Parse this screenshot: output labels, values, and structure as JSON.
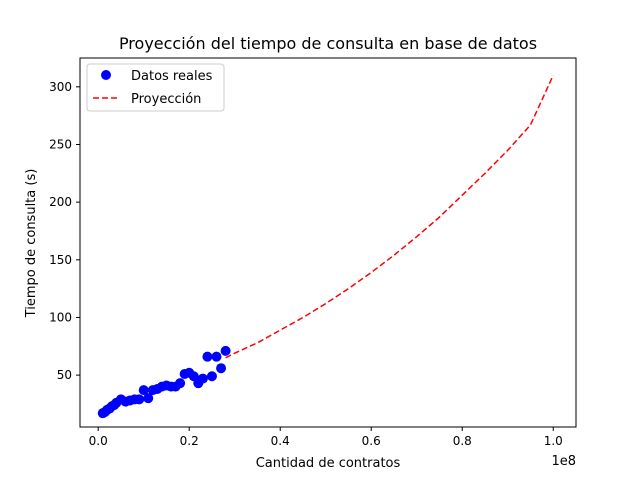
{
  "chart_data": {
    "type": "scatter",
    "title": "Proyección del tiempo de consulta en base de datos",
    "xlabel": "Cantidad de contratos",
    "ylabel": "Tiempo de consulta (s)",
    "x_offset_label": "1e8",
    "xlim": [
      -0.04,
      1.05
    ],
    "ylim": [
      5,
      325
    ],
    "x_ticks": [
      0.0,
      0.2,
      0.4,
      0.6,
      0.8,
      1.0
    ],
    "x_tick_labels": [
      "0.0",
      "0.2",
      "0.4",
      "0.6",
      "0.8",
      "1.0"
    ],
    "y_ticks": [
      50,
      100,
      150,
      200,
      250,
      300
    ],
    "y_tick_labels": [
      "50",
      "100",
      "150",
      "200",
      "250",
      "300"
    ],
    "grid": false,
    "legend_position": "top-left",
    "series": [
      {
        "name": "Datos reales",
        "type": "scatter",
        "color": "#0000ff",
        "points": [
          [
            0.01,
            17
          ],
          [
            0.015,
            18
          ],
          [
            0.02,
            20
          ],
          [
            0.025,
            21
          ],
          [
            0.03,
            23
          ],
          [
            0.035,
            24
          ],
          [
            0.04,
            26
          ],
          [
            0.05,
            29
          ],
          [
            0.06,
            27
          ],
          [
            0.07,
            28
          ],
          [
            0.08,
            29
          ],
          [
            0.09,
            29
          ],
          [
            0.1,
            37
          ],
          [
            0.11,
            30
          ],
          [
            0.12,
            37
          ],
          [
            0.13,
            38
          ],
          [
            0.14,
            40
          ],
          [
            0.15,
            41
          ],
          [
            0.16,
            40
          ],
          [
            0.17,
            40
          ],
          [
            0.18,
            43
          ],
          [
            0.19,
            51
          ],
          [
            0.2,
            52
          ],
          [
            0.21,
            49
          ],
          [
            0.22,
            43
          ],
          [
            0.23,
            47
          ],
          [
            0.24,
            66
          ],
          [
            0.25,
            49
          ],
          [
            0.26,
            66
          ],
          [
            0.27,
            56
          ],
          [
            0.28,
            71
          ]
        ]
      },
      {
        "name": "Proyección",
        "type": "line",
        "style": "dashed",
        "color": "#ff0000",
        "points": [
          [
            0.28,
            65
          ],
          [
            0.3,
            69
          ],
          [
            0.35,
            78
          ],
          [
            0.4,
            89
          ],
          [
            0.45,
            100
          ],
          [
            0.5,
            112
          ],
          [
            0.55,
            125
          ],
          [
            0.6,
            139
          ],
          [
            0.65,
            154
          ],
          [
            0.7,
            170
          ],
          [
            0.75,
            187
          ],
          [
            0.8,
            206
          ],
          [
            0.85,
            225
          ],
          [
            0.9,
            245
          ],
          [
            0.95,
            267
          ],
          [
            1.0,
            310
          ]
        ]
      }
    ]
  }
}
